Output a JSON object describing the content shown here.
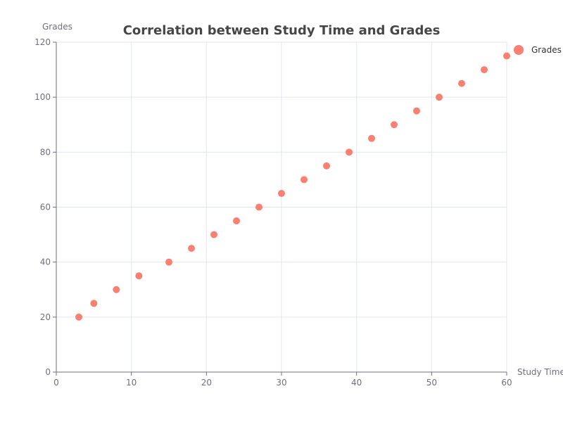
{
  "chart_data": {
    "type": "scatter",
    "title": "Correlation between Study Time and Grades",
    "xlabel": "Study Time",
    "ylabel": "Grades",
    "xlim": [
      0,
      60
    ],
    "ylim": [
      0,
      120
    ],
    "xticks": [
      0,
      10,
      20,
      30,
      40,
      50,
      60
    ],
    "yticks": [
      0,
      20,
      40,
      60,
      80,
      100,
      120
    ],
    "grid": true,
    "legend_position": "top-right",
    "series": [
      {
        "name": "Grades",
        "color": "#fa8072",
        "points": [
          [
            3,
            20
          ],
          [
            5,
            25
          ],
          [
            8,
            30
          ],
          [
            11,
            35
          ],
          [
            15,
            40
          ],
          [
            18,
            45
          ],
          [
            21,
            50
          ],
          [
            24,
            55
          ],
          [
            27,
            60
          ],
          [
            30,
            65
          ],
          [
            33,
            70
          ],
          [
            36,
            75
          ],
          [
            39,
            80
          ],
          [
            42,
            85
          ],
          [
            45,
            90
          ],
          [
            48,
            95
          ],
          [
            51,
            100
          ],
          [
            54,
            105
          ],
          [
            57,
            110
          ],
          [
            60,
            115
          ]
        ]
      }
    ]
  }
}
